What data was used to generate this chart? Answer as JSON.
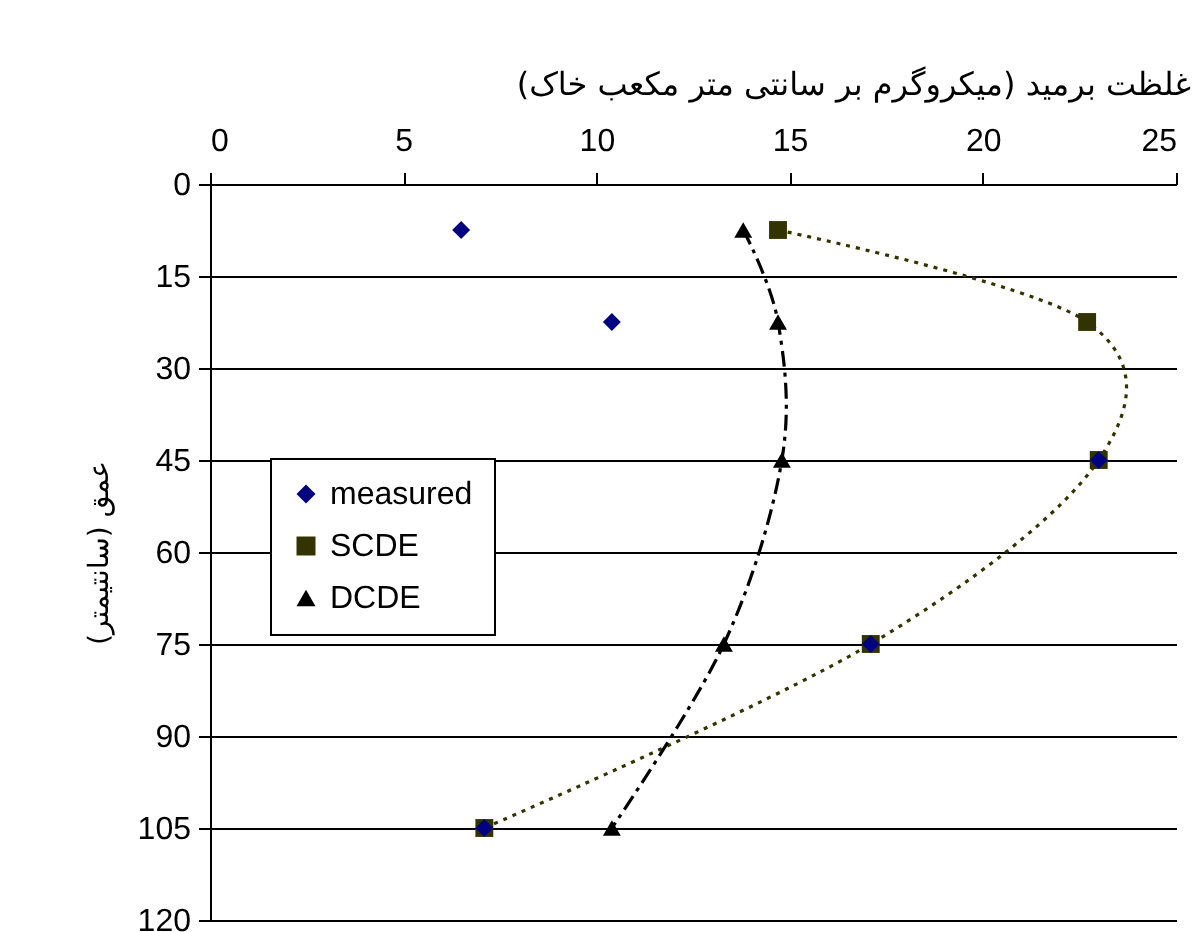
{
  "chart_data": {
    "type": "line",
    "xlabel": "غلظت برمید (میکروگرم بر سانتی متر مکعب خاک)",
    "ylabel": "عمق (سانتیمتر)",
    "xlim": [
      0,
      25
    ],
    "xticks": [
      0,
      5,
      10,
      15,
      20,
      25
    ],
    "ylim": [
      120,
      0
    ],
    "yticks": [
      0,
      15,
      30,
      45,
      60,
      75,
      90,
      105,
      120
    ],
    "grid": "y",
    "legend": "left",
    "series": [
      {
        "name": "measured",
        "type": "scatter",
        "marker": "diamond",
        "color": "#000080",
        "x": [
          6.5,
          10.4,
          23.0,
          17.1,
          7.1
        ],
        "values": [
          7.5,
          22.5,
          45,
          75,
          105
        ]
      },
      {
        "name": "SCDE",
        "type": "line",
        "marker": "square",
        "line_style": "dotted",
        "color": "#333300",
        "x": [
          14.7,
          22.7,
          23.0,
          17.1,
          7.1
        ],
        "values": [
          7.5,
          22.5,
          45,
          75,
          105
        ]
      },
      {
        "name": "DCDE",
        "type": "line",
        "marker": "triangle",
        "line_style": "dashdot",
        "color": "#000000",
        "x": [
          13.8,
          14.7,
          14.8,
          13.3,
          10.4
        ],
        "values": [
          7.5,
          22.5,
          45,
          75,
          105
        ]
      }
    ]
  }
}
